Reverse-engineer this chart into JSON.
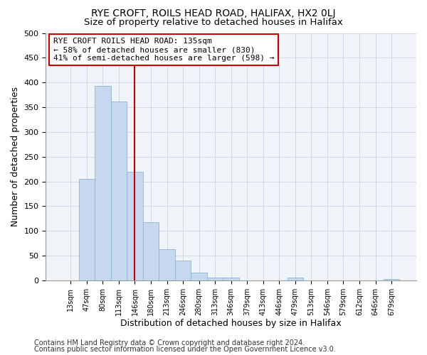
{
  "title": "RYE CROFT, ROILS HEAD ROAD, HALIFAX, HX2 0LJ",
  "subtitle": "Size of property relative to detached houses in Halifax",
  "xlabel": "Distribution of detached houses by size in Halifax",
  "ylabel": "Number of detached properties",
  "bar_color": "#c5d8ee",
  "bar_edge_color": "#8ab4d4",
  "categories": [
    "13sqm",
    "47sqm",
    "80sqm",
    "113sqm",
    "146sqm",
    "180sqm",
    "213sqm",
    "246sqm",
    "280sqm",
    "313sqm",
    "346sqm",
    "379sqm",
    "413sqm",
    "446sqm",
    "479sqm",
    "513sqm",
    "546sqm",
    "579sqm",
    "612sqm",
    "646sqm",
    "679sqm"
  ],
  "values": [
    0,
    205,
    393,
    362,
    220,
    118,
    63,
    40,
    15,
    5,
    5,
    0,
    0,
    0,
    5,
    0,
    0,
    0,
    0,
    0,
    3
  ],
  "vline_x": 4,
  "vline_color": "#cc0000",
  "annotation_title": "RYE CROFT ROILS HEAD ROAD: 135sqm",
  "annotation_line1": "← 58% of detached houses are smaller (830)",
  "annotation_line2": "41% of semi-detached houses are larger (598) →",
  "annotation_box_color": "#ffffff",
  "annotation_border_color": "#cc0000",
  "ylim": [
    0,
    500
  ],
  "yticks": [
    0,
    50,
    100,
    150,
    200,
    250,
    300,
    350,
    400,
    450,
    500
  ],
  "footnote1": "Contains HM Land Registry data © Crown copyright and database right 2024.",
  "footnote2": "Contains public sector information licensed under the Open Government Licence v3.0.",
  "title_fontsize": 10,
  "subtitle_fontsize": 9.5,
  "annotation_fontsize": 8,
  "footnote_fontsize": 7,
  "xlabel_fontsize": 9,
  "ylabel_fontsize": 9,
  "bg_color": "#f0f4f8"
}
